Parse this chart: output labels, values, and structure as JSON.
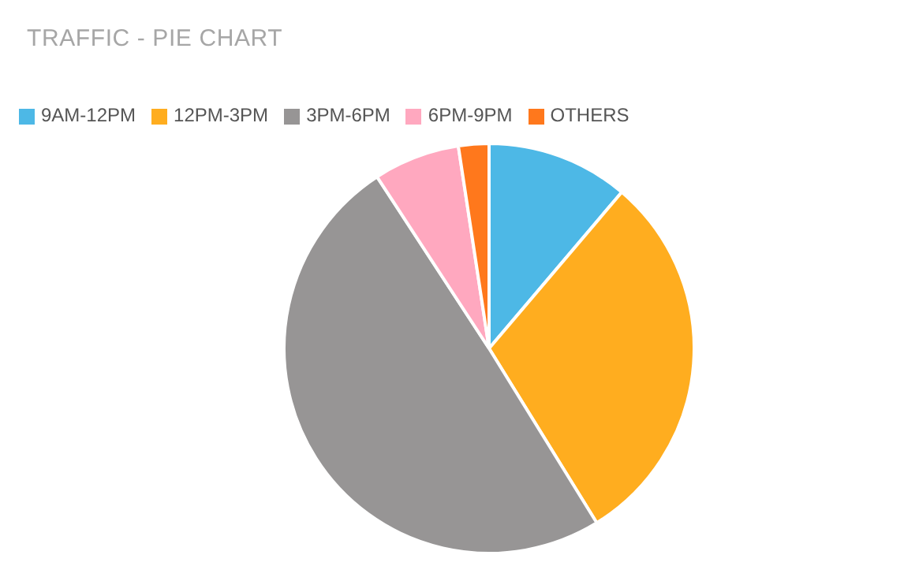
{
  "chart_data": {
    "type": "pie",
    "title": "TRAFFIC - PIE CHART",
    "categories": [
      "9AM-12PM",
      "12PM-3PM",
      "3PM-6PM",
      "6PM-9PM",
      "OTHERS"
    ],
    "values": [
      11.2,
      30,
      49.6,
      6.8,
      2.4
    ],
    "colors": [
      "#4db8e6",
      "#ffad1f",
      "#979595",
      "#ffa8bf",
      "#ff781c"
    ],
    "legend": "top left"
  }
}
